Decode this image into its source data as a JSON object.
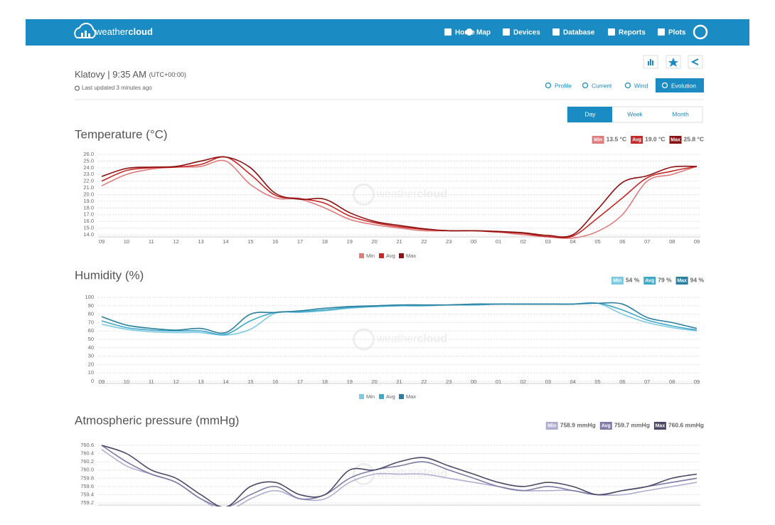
{
  "nav": {
    "logo_light": "weather",
    "logo_bold": "cloud",
    "items": [
      "Home",
      "Map",
      "Devices",
      "Database",
      "Reports",
      "Plots"
    ]
  },
  "station": {
    "title": "Klatovy | 9:35 AM",
    "timezone": "(UTC+00:00)",
    "updated": "Last updated 3 minutes ago"
  },
  "tabs": [
    "Profile",
    "Current",
    "Wind",
    "Evolution"
  ],
  "periods": [
    "Day",
    "Week",
    "Month"
  ],
  "watermark_light": "weather",
  "watermark_bold": "cloud",
  "hours": [
    "09",
    "10",
    "11",
    "12",
    "13",
    "14",
    "15",
    "16",
    "17",
    "18",
    "19",
    "20",
    "21",
    "22",
    "23",
    "00",
    "01",
    "02",
    "03",
    "04",
    "05",
    "06",
    "07",
    "08",
    "09"
  ],
  "charts": [
    {
      "title": "Temperature (°C)",
      "ylim": [
        14,
        26
      ],
      "yticks": [
        {
          "value": 14,
          "label": "14.0"
        },
        {
          "value": 15,
          "label": "15.0"
        },
        {
          "value": 16,
          "label": "16.0"
        },
        {
          "value": 17,
          "label": "17.0"
        },
        {
          "value": 18,
          "label": "18.0"
        },
        {
          "value": 19,
          "label": "19.0"
        },
        {
          "value": 20,
          "label": "20.0"
        },
        {
          "value": 21,
          "label": "21.0"
        },
        {
          "value": 22,
          "label": "22.0"
        },
        {
          "value": 23,
          "label": "23.0"
        },
        {
          "value": 24,
          "label": "24.0"
        },
        {
          "value": 25,
          "label": "25.0"
        },
        {
          "value": 26,
          "label": "26.0"
        }
      ],
      "series": [
        {
          "name": "Min",
          "color": "#e07b7b",
          "summary": "13.5 °C",
          "values": [
            21.3,
            23.0,
            23.8,
            24.1,
            24.2,
            25.0,
            21.5,
            19.5,
            19.3,
            18.0,
            16.3,
            15.5,
            15.0,
            14.6,
            14.6,
            14.6,
            14.4,
            14.0,
            13.7,
            13.5,
            14.5,
            17.0,
            22.0,
            23.0,
            24.2
          ]
        },
        {
          "name": "Avg",
          "color": "#c62828",
          "summary": "19.0 °C",
          "values": [
            22.0,
            23.6,
            24.0,
            24.1,
            24.5,
            25.6,
            23.0,
            19.9,
            19.4,
            18.7,
            16.8,
            15.8,
            15.2,
            14.8,
            14.6,
            14.6,
            14.4,
            14.2,
            13.7,
            13.8,
            16.5,
            19.5,
            22.5,
            23.5,
            24.2
          ]
        },
        {
          "name": "Max",
          "color": "#8b1010",
          "summary": "25.8 °C",
          "values": [
            22.7,
            23.9,
            24.1,
            24.2,
            25.0,
            25.6,
            24.0,
            20.2,
            19.3,
            19.3,
            17.3,
            16.0,
            15.4,
            14.9,
            14.6,
            14.6,
            14.5,
            14.3,
            13.9,
            14.0,
            17.8,
            21.8,
            22.8,
            24.1,
            24.2
          ]
        }
      ]
    },
    {
      "title": "Humidity (%)",
      "ylim": [
        0,
        100
      ],
      "yticks": [
        0,
        10,
        20,
        30,
        40,
        50,
        60,
        70,
        80,
        90,
        100
      ],
      "series": [
        {
          "name": "Min",
          "color": "#7ec8e0",
          "summary": "54 %",
          "values": [
            68,
            62,
            59,
            58,
            58,
            55,
            62,
            81,
            82,
            84,
            87,
            89,
            90,
            90,
            91,
            91,
            92,
            92,
            92,
            92,
            93,
            80,
            70,
            64,
            60
          ]
        },
        {
          "name": "Avg",
          "color": "#3fa9c9",
          "summary": "79 %",
          "values": [
            72,
            64,
            61,
            60,
            60,
            56,
            72,
            82,
            83,
            85,
            88,
            89,
            90,
            90,
            91,
            91,
            92,
            92,
            92,
            92,
            93,
            85,
            73,
            66,
            61
          ]
        },
        {
          "name": "Max",
          "color": "#2a7f9e",
          "summary": "94 %",
          "values": [
            77,
            67,
            63,
            61,
            63,
            58,
            80,
            82,
            84,
            87,
            89,
            90,
            91,
            91,
            91,
            92,
            92,
            92,
            92,
            92,
            93,
            92,
            76,
            70,
            63
          ]
        }
      ]
    },
    {
      "title": "Atmospheric pressure (mmHg)",
      "ylim": [
        759.2,
        760.6
      ],
      "yticks": [
        759.2,
        759.4,
        759.6,
        759.8,
        {
          "value": 760,
          "label": "760.0"
        },
        760.2,
        760.4,
        760.6
      ],
      "series": [
        {
          "name": "Min",
          "color": "#b0aed0",
          "summary": "758.9 mmHg",
          "values": [
            760.5,
            760.1,
            759.9,
            759.7,
            759.3,
            759.0,
            759.3,
            759.5,
            759.3,
            759.3,
            759.7,
            759.9,
            759.9,
            759.9,
            759.8,
            759.7,
            759.6,
            759.5,
            759.5,
            759.5,
            759.4,
            759.4,
            759.5,
            759.6,
            759.7
          ]
        },
        {
          "name": "Avg",
          "color": "#7c7aa6",
          "summary": "759.7 mmHg",
          "values": [
            760.6,
            760.2,
            759.9,
            759.7,
            759.3,
            759.1,
            759.4,
            759.6,
            759.3,
            759.4,
            759.8,
            760.0,
            760.1,
            760.2,
            760.0,
            759.8,
            759.6,
            759.5,
            759.6,
            759.5,
            759.4,
            759.5,
            759.6,
            759.7,
            759.8
          ]
        },
        {
          "name": "Max",
          "color": "#4a4866",
          "summary": "760.6 mmHg",
          "values": [
            760.6,
            760.4,
            760.0,
            759.8,
            759.4,
            759.1,
            759.6,
            759.7,
            759.4,
            759.4,
            760.0,
            760.0,
            760.2,
            760.3,
            760.1,
            759.9,
            759.7,
            759.6,
            759.7,
            759.6,
            759.4,
            759.5,
            759.6,
            759.8,
            759.9
          ]
        }
      ]
    }
  ]
}
